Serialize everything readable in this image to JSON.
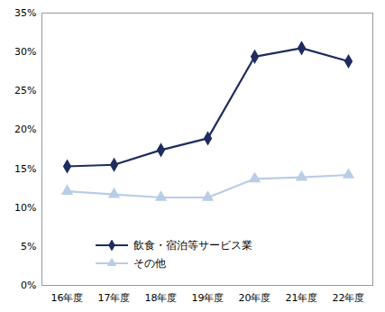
{
  "chart_data": {
    "type": "line",
    "categories": [
      "16年度",
      "17年度",
      "18年度",
      "19年度",
      "20年度",
      "21年度",
      "22年度"
    ],
    "series": [
      {
        "name": "飲食・宿泊等サービス業",
        "color": "#1f2d5e",
        "marker": "diamond",
        "values": [
          15.3,
          15.5,
          17.4,
          18.9,
          29.4,
          30.5,
          28.8
        ]
      },
      {
        "name": "その他",
        "color": "#b9cde5",
        "marker": "triangle",
        "values": [
          12.1,
          11.7,
          11.3,
          11.3,
          13.7,
          13.9,
          14.2
        ]
      }
    ],
    "ylim": [
      0,
      35
    ],
    "yticks": [
      {
        "value": 0,
        "label": "0%"
      },
      {
        "value": 5,
        "label": "5%"
      },
      {
        "value": 10,
        "label": "10%"
      },
      {
        "value": 15,
        "label": "15%"
      },
      {
        "value": 20,
        "label": "20%"
      },
      {
        "value": 25,
        "label": "25%"
      },
      {
        "value": 30,
        "label": "30%"
      },
      {
        "value": 35,
        "label": "35%"
      }
    ],
    "grid": false,
    "legend": "lower left"
  }
}
